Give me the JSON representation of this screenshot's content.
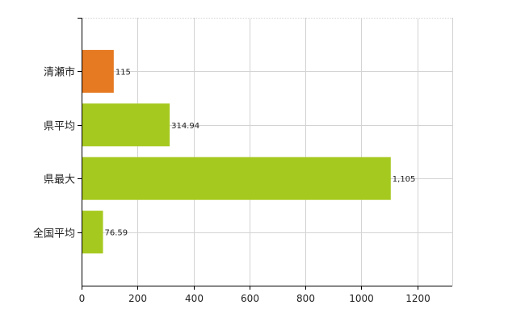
{
  "chart_data": {
    "type": "bar",
    "orientation": "horizontal",
    "categories": [
      "清瀬市",
      "県平均",
      "県最大",
      "全国平均"
    ],
    "values": [
      115,
      314.94,
      1105,
      76.59
    ],
    "value_labels": [
      "115",
      "314.94",
      "1,105",
      "76.59"
    ],
    "xlim": [
      0,
      1325
    ],
    "x_ticks": [
      0,
      200,
      400,
      600,
      800,
      1000,
      1200
    ],
    "x_tick_labels": [
      "0",
      "200",
      "400",
      "600",
      "800",
      "1000",
      "1200"
    ],
    "grid": true,
    "colors": {
      "highlight": "#e67a22",
      "default": "#a6c920",
      "grid": "#d3d3d3",
      "axis": "#000000"
    },
    "bar_colors": [
      "#e67a22",
      "#a6c920",
      "#a6c920",
      "#a6c920"
    ]
  }
}
